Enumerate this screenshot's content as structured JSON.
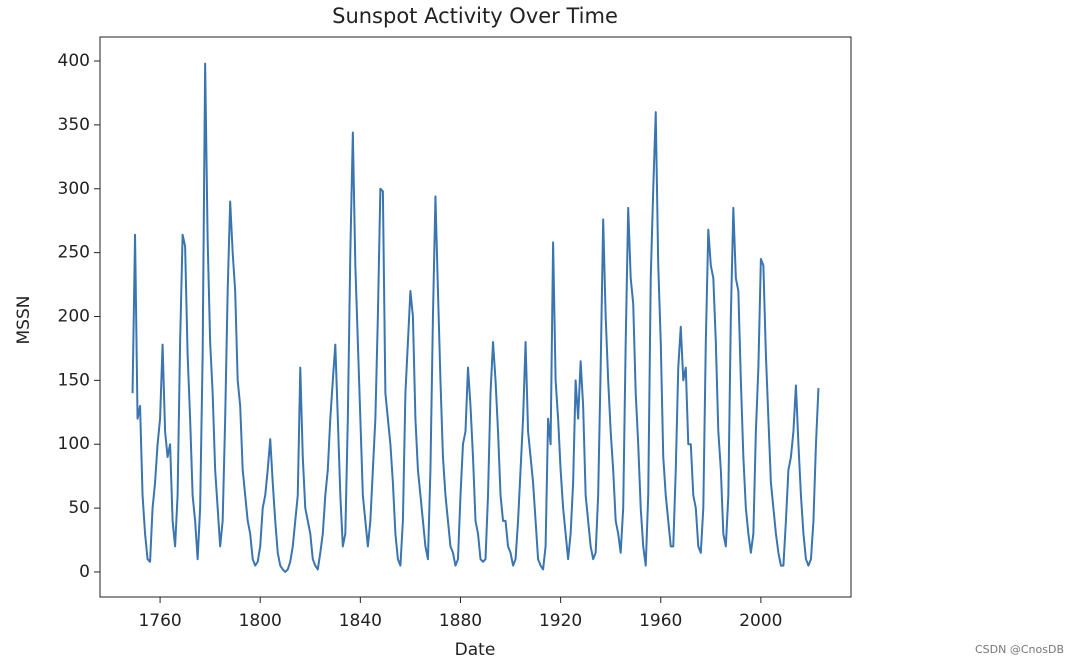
{
  "chart_data": {
    "type": "line",
    "title": "Sunspot Activity Over Time",
    "x_label": "Date",
    "y_label": "MSSN",
    "x": [
      1749,
      1750,
      1751,
      1752,
      1753,
      1754,
      1755,
      1756,
      1757,
      1758,
      1759,
      1760,
      1761,
      1762,
      1763,
      1764,
      1765,
      1766,
      1767,
      1768,
      1769,
      1770,
      1771,
      1772,
      1773,
      1774,
      1775,
      1776,
      1777,
      1778,
      1779,
      1780,
      1781,
      1782,
      1783,
      1784,
      1785,
      1786,
      1787,
      1788,
      1789,
      1790,
      1791,
      1792,
      1793,
      1794,
      1795,
      1796,
      1797,
      1798,
      1799,
      1800,
      1801,
      1802,
      1803,
      1804,
      1805,
      1806,
      1807,
      1808,
      1809,
      1810,
      1811,
      1812,
      1813,
      1814,
      1815,
      1816,
      1817,
      1818,
      1819,
      1820,
      1821,
      1822,
      1823,
      1824,
      1825,
      1826,
      1827,
      1828,
      1829,
      1830,
      1831,
      1832,
      1833,
      1834,
      1835,
      1836,
      1837,
      1838,
      1839,
      1840,
      1841,
      1842,
      1843,
      1844,
      1845,
      1846,
      1847,
      1848,
      1849,
      1850,
      1851,
      1852,
      1853,
      1854,
      1855,
      1856,
      1857,
      1858,
      1859,
      1860,
      1861,
      1862,
      1863,
      1864,
      1865,
      1866,
      1867,
      1868,
      1869,
      1870,
      1871,
      1872,
      1873,
      1874,
      1875,
      1876,
      1877,
      1878,
      1879,
      1880,
      1881,
      1882,
      1883,
      1884,
      1885,
      1886,
      1887,
      1888,
      1889,
      1890,
      1891,
      1892,
      1893,
      1894,
      1895,
      1896,
      1897,
      1898,
      1899,
      1900,
      1901,
      1902,
      1903,
      1904,
      1905,
      1906,
      1907,
      1908,
      1909,
      1910,
      1911,
      1912,
      1913,
      1914,
      1915,
      1916,
      1917,
      1918,
      1919,
      1920,
      1921,
      1922,
      1923,
      1924,
      1925,
      1926,
      1927,
      1928,
      1929,
      1930,
      1931,
      1932,
      1933,
      1934,
      1935,
      1936,
      1937,
      1938,
      1939,
      1940,
      1941,
      1942,
      1943,
      1944,
      1945,
      1946,
      1947,
      1948,
      1949,
      1950,
      1951,
      1952,
      1953,
      1954,
      1955,
      1956,
      1957,
      1958,
      1959,
      1960,
      1961,
      1962,
      1963,
      1964,
      1965,
      1966,
      1967,
      1968,
      1969,
      1970,
      1971,
      1972,
      1973,
      1974,
      1975,
      1976,
      1977,
      1978,
      1979,
      1980,
      1981,
      1982,
      1983,
      1984,
      1985,
      1986,
      1987,
      1988,
      1989,
      1990,
      1991,
      1992,
      1993,
      1994,
      1995,
      1996,
      1997,
      1998,
      1999,
      2000,
      2001,
      2002,
      2003,
      2004,
      2005,
      2006,
      2007,
      2008,
      2009,
      2010,
      2011,
      2012,
      2013,
      2014,
      2015,
      2016,
      2017,
      2018,
      2019,
      2020,
      2021,
      2022,
      2023
    ],
    "values": [
      140,
      264,
      120,
      130,
      60,
      30,
      10,
      8,
      50,
      70,
      100,
      120,
      178,
      110,
      90,
      100,
      40,
      20,
      60,
      180,
      264,
      255,
      170,
      120,
      60,
      40,
      10,
      50,
      170,
      398,
      260,
      180,
      140,
      80,
      50,
      20,
      40,
      120,
      220,
      290,
      250,
      220,
      150,
      130,
      80,
      60,
      40,
      30,
      10,
      5,
      8,
      20,
      50,
      60,
      80,
      104,
      70,
      40,
      15,
      5,
      2,
      0,
      2,
      8,
      20,
      40,
      60,
      160,
      90,
      50,
      40,
      30,
      10,
      5,
      2,
      15,
      30,
      60,
      80,
      120,
      150,
      178,
      120,
      60,
      20,
      30,
      120,
      250,
      344,
      240,
      180,
      120,
      60,
      40,
      20,
      40,
      80,
      120,
      200,
      300,
      298,
      140,
      120,
      100,
      70,
      30,
      10,
      5,
      40,
      140,
      180,
      220,
      200,
      120,
      80,
      60,
      40,
      20,
      10,
      80,
      200,
      294,
      220,
      150,
      90,
      60,
      40,
      20,
      15,
      5,
      10,
      60,
      100,
      110,
      160,
      130,
      90,
      40,
      30,
      10,
      8,
      10,
      60,
      140,
      180,
      150,
      110,
      60,
      40,
      40,
      20,
      15,
      5,
      10,
      40,
      80,
      120,
      180,
      110,
      90,
      70,
      40,
      10,
      5,
      2,
      20,
      120,
      100,
      258,
      150,
      120,
      80,
      50,
      30,
      10,
      30,
      70,
      150,
      120,
      165,
      130,
      60,
      40,
      20,
      10,
      15,
      60,
      160,
      276,
      200,
      150,
      110,
      80,
      40,
      30,
      15,
      50,
      180,
      285,
      230,
      210,
      140,
      100,
      50,
      20,
      5,
      60,
      230,
      300,
      360,
      240,
      180,
      90,
      60,
      40,
      20,
      20,
      80,
      160,
      192,
      150,
      160,
      100,
      100,
      60,
      50,
      20,
      15,
      50,
      180,
      268,
      240,
      230,
      180,
      110,
      80,
      30,
      20,
      60,
      200,
      285,
      230,
      220,
      150,
      90,
      50,
      30,
      15,
      30,
      110,
      160,
      245,
      240,
      170,
      120,
      70,
      50,
      30,
      15,
      5,
      5,
      40,
      80,
      90,
      110,
      146,
      100,
      60,
      30,
      10,
      5,
      10,
      40,
      100,
      144
    ],
    "color": "#3a75b0",
    "xlim": [
      1736,
      2036
    ],
    "ylim": [
      -19.6,
      418.8
    ],
    "xticks": [
      1760,
      1800,
      1840,
      1880,
      1920,
      1960,
      2000
    ],
    "yticks": [
      0,
      50,
      100,
      150,
      200,
      250,
      300,
      350,
      400
    ],
    "watermark": "CSDN @CnosDB"
  }
}
